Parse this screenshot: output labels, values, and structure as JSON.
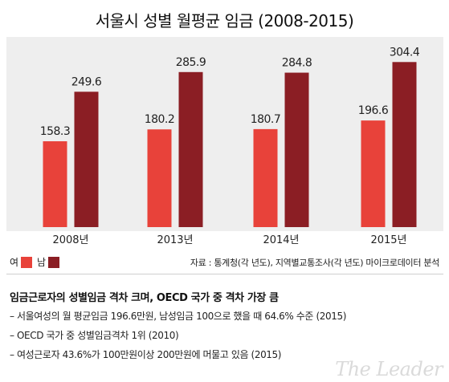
{
  "title": "서울시 성별 월평균 임금 (2008-2015)",
  "chart_data": {
    "type": "bar",
    "title": "서울시 성별 월평균 임금 (2008-2015)",
    "categories": [
      "2008년",
      "2013년",
      "2014년",
      "2015년"
    ],
    "series": [
      {
        "name": "여",
        "values": [
          158.3,
          180.2,
          180.7,
          196.6
        ],
        "color": "#e8423a"
      },
      {
        "name": "남",
        "values": [
          249.6,
          285.9,
          284.8,
          304.4
        ],
        "color": "#8b1e24"
      }
    ],
    "ylim": [
      0,
      330
    ],
    "grid": false,
    "legend": "bottom-left"
  },
  "legend": {
    "female": "여",
    "male": "남"
  },
  "source": "자료 : 통계청(각 년도), 지역별교통조사(각 년도) 마이크로데이터 분석",
  "notes": {
    "heading": "임금근로자의 성별임금 격차 크며, OECD 국가 중 격차 가장 큼",
    "lines": [
      "– 서울여성의 월 평균임금 196.6만원, 남성임금 100으로 했을 때 64.6% 수준 (2015)",
      "– OECD 국가 중 성별임금격차 1위 (2010)",
      "– 여성근로자 43.6%가 100만원이상 200만원에 머물고 있음 (2015)"
    ]
  },
  "watermark": "The Leader"
}
